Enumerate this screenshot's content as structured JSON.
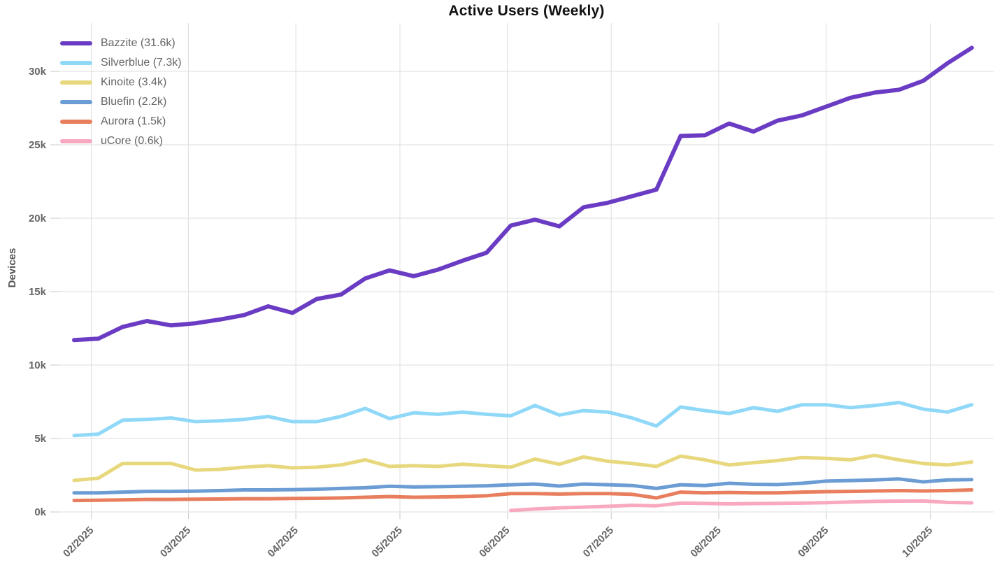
{
  "title": "Active Users (Weekly)",
  "y_axis": {
    "label": "Devices",
    "ticks": [
      {
        "label": "0k",
        "value_k": 0
      },
      {
        "label": "5k",
        "value_k": 5
      },
      {
        "label": "10k",
        "value_k": 10
      },
      {
        "label": "15k",
        "value_k": 15
      },
      {
        "label": "20k",
        "value_k": 20
      },
      {
        "label": "25k",
        "value_k": 25
      },
      {
        "label": "30k",
        "value_k": 30
      }
    ]
  },
  "chart_data": {
    "type": "line",
    "title": "Active Users (Weekly)",
    "ylabel": "Devices",
    "xlabel": "",
    "ylim_k": [
      0,
      33.3
    ],
    "grid": true,
    "legend_position": "top-left",
    "x_unit": "week",
    "n_points": 38,
    "month_gridlines": [
      {
        "label": "02/2025",
        "week": 0.71
      },
      {
        "label": "03/2025",
        "week": 4.71
      },
      {
        "label": "04/2025",
        "week": 9.14
      },
      {
        "label": "05/2025",
        "week": 13.43
      },
      {
        "label": "06/2025",
        "week": 17.86
      },
      {
        "label": "07/2025",
        "week": 22.14
      },
      {
        "label": "08/2025",
        "week": 26.57
      },
      {
        "label": "09/2025",
        "week": 31.0
      },
      {
        "label": "10/2025",
        "week": 35.29
      }
    ],
    "series": [
      {
        "name": "Bazzite",
        "legend_label": "Bazzite (31.6k)",
        "current_k": 31.6,
        "color": "#6A3CC4",
        "stroke_width": 6,
        "values_k": [
          11.7,
          11.8,
          12.6,
          13.0,
          12.7,
          12.85,
          13.1,
          13.4,
          14.0,
          13.55,
          14.5,
          14.8,
          15.9,
          16.45,
          16.05,
          16.5,
          17.1,
          17.65,
          19.5,
          19.9,
          19.45,
          20.75,
          21.05,
          21.5,
          21.95,
          25.6,
          25.65,
          26.45,
          25.9,
          26.65,
          27.0,
          27.6,
          28.2,
          28.55,
          28.75,
          29.35,
          30.55,
          31.6
        ]
      },
      {
        "name": "Silverblue",
        "legend_label": "Silverblue (7.3k)",
        "current_k": 7.3,
        "color": "#90D8F8",
        "stroke_width": 5,
        "values_k": [
          5.2,
          5.3,
          6.25,
          6.3,
          6.4,
          6.15,
          6.2,
          6.3,
          6.5,
          6.15,
          6.15,
          6.5,
          7.05,
          6.35,
          6.75,
          6.65,
          6.8,
          6.65,
          6.55,
          7.25,
          6.6,
          6.9,
          6.8,
          6.4,
          5.85,
          7.15,
          6.9,
          6.7,
          7.1,
          6.85,
          7.3,
          7.3,
          7.1,
          7.25,
          7.45,
          7.0,
          6.8,
          7.3
        ]
      },
      {
        "name": "Kinoite",
        "legend_label": "Kinoite (3.4k)",
        "current_k": 3.4,
        "color": "#E7D87D",
        "stroke_width": 5,
        "values_k": [
          2.15,
          2.3,
          3.3,
          3.3,
          3.3,
          2.85,
          2.9,
          3.05,
          3.15,
          3.0,
          3.05,
          3.2,
          3.55,
          3.1,
          3.15,
          3.1,
          3.25,
          3.15,
          3.05,
          3.6,
          3.25,
          3.75,
          3.45,
          3.3,
          3.1,
          3.8,
          3.55,
          3.2,
          3.35,
          3.5,
          3.7,
          3.65,
          3.55,
          3.85,
          3.55,
          3.3,
          3.2,
          3.4
        ]
      },
      {
        "name": "Bluefin",
        "legend_label": "Bluefin (2.2k)",
        "current_k": 2.2,
        "color": "#6B9CD3",
        "stroke_width": 5,
        "values_k": [
          1.3,
          1.3,
          1.35,
          1.4,
          1.4,
          1.42,
          1.45,
          1.5,
          1.5,
          1.52,
          1.55,
          1.6,
          1.65,
          1.75,
          1.7,
          1.72,
          1.75,
          1.78,
          1.85,
          1.9,
          1.76,
          1.9,
          1.85,
          1.8,
          1.6,
          1.85,
          1.8,
          1.95,
          1.88,
          1.86,
          1.95,
          2.1,
          2.14,
          2.18,
          2.25,
          2.05,
          2.18,
          2.2
        ]
      },
      {
        "name": "Aurora",
        "legend_label": "Aurora (1.5k)",
        "current_k": 1.5,
        "color": "#E87E5D",
        "stroke_width": 5,
        "values_k": [
          0.78,
          0.8,
          0.82,
          0.85,
          0.85,
          0.87,
          0.88,
          0.9,
          0.9,
          0.92,
          0.93,
          0.95,
          1.0,
          1.05,
          1.0,
          1.02,
          1.05,
          1.1,
          1.25,
          1.25,
          1.22,
          1.25,
          1.25,
          1.2,
          0.95,
          1.35,
          1.3,
          1.33,
          1.3,
          1.3,
          1.35,
          1.38,
          1.4,
          1.43,
          1.45,
          1.43,
          1.45,
          1.5
        ]
      },
      {
        "name": "uCore",
        "legend_label": "uCore (0.6k)",
        "current_k": 0.6,
        "color": "#F8A9BF",
        "stroke_width": 5,
        "values_k": [
          null,
          null,
          null,
          null,
          null,
          null,
          null,
          null,
          null,
          null,
          null,
          null,
          null,
          null,
          null,
          null,
          null,
          null,
          0.1,
          0.2,
          0.28,
          0.33,
          0.38,
          0.45,
          0.42,
          0.6,
          0.58,
          0.55,
          0.57,
          0.58,
          0.6,
          0.63,
          0.68,
          0.72,
          0.74,
          0.75,
          0.65,
          0.62
        ]
      }
    ]
  },
  "style_colors": {
    "gridline": "#DDDDDD",
    "tick_stub": "#C8C8C8",
    "tick_text": "#666666",
    "axis_label_text": "#555555",
    "title_text": "#111111",
    "background": "#FFFFFF"
  }
}
